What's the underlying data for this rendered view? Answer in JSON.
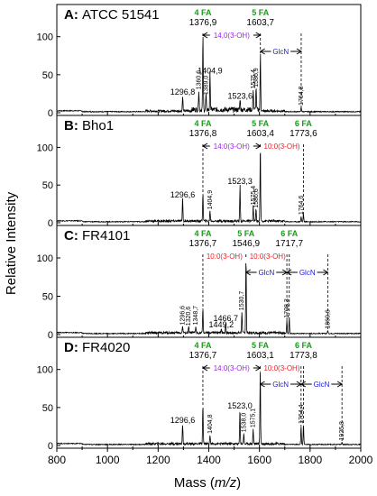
{
  "figure": {
    "ylabel": "Relative Intensity",
    "xlabel_prefix": "Mass (",
    "xlabel_var": "m/z",
    "xlabel_suffix": ")",
    "x_ticks": [
      "800",
      "1000",
      "1200",
      "1400",
      "1600",
      "1800",
      "2000"
    ],
    "y_ticks": [
      "0",
      "50",
      "100"
    ]
  },
  "chart_data": [
    {
      "type": "line",
      "panel": "A",
      "title_letter": "A:",
      "title": "ATCC 51541",
      "xlim": [
        800,
        2000
      ],
      "ylim": [
        0,
        140
      ],
      "peaks": [
        {
          "x": 1296.8,
          "y": 20,
          "label": "1296,8",
          "rot": false
        },
        {
          "x": 1360.6,
          "y": 27,
          "label": "1360,6",
          "rot": true
        },
        {
          "x": 1376.9,
          "y": 100,
          "label": "",
          "rot": false
        },
        {
          "x": 1389.0,
          "y": 20,
          "label": "1389,0",
          "rot": true
        },
        {
          "x": 1404.9,
          "y": 48,
          "label": "1404,9",
          "rot": false
        },
        {
          "x": 1523.6,
          "y": 15,
          "label": "1523,6",
          "rot": false
        },
        {
          "x": 1575.4,
          "y": 28,
          "label": "1575,4",
          "rot": true
        },
        {
          "x": 1586.9,
          "y": 30,
          "label": "1586,9",
          "rot": true
        },
        {
          "x": 1603.7,
          "y": 78,
          "label": "",
          "rot": false
        },
        {
          "x": 1764.8,
          "y": 6,
          "label": "1764,8",
          "rot": true
        }
      ],
      "ion_labels": [
        {
          "n": "4 FA",
          "m": "1376,9",
          "x": 1376.9
        },
        {
          "n": "5 FA",
          "m": "1603,7",
          "x": 1603.7
        }
      ],
      "brackets": [
        {
          "x1": 1376.9,
          "x2": 1603.7,
          "text": "14,0(3-OH)",
          "color": "#a020f0",
          "row": 0
        },
        {
          "x1": 1603.7,
          "x2": 1764.8,
          "text": "GlcN",
          "color": "#1a1adc",
          "row": 1
        }
      ]
    },
    {
      "type": "line",
      "panel": "B",
      "title_letter": "B:",
      "title": "Bho1",
      "xlim": [
        800,
        2000
      ],
      "ylim": [
        0,
        140
      ],
      "peaks": [
        {
          "x": 1296.6,
          "y": 30,
          "label": "1296,6",
          "rot": false
        },
        {
          "x": 1376.8,
          "y": 38,
          "label": "",
          "rot": false
        },
        {
          "x": 1404.9,
          "y": 14,
          "label": "1404,9",
          "rot": true
        },
        {
          "x": 1523.3,
          "y": 48,
          "label": "1523,3",
          "rot": false
        },
        {
          "x": 1575.4,
          "y": 20,
          "label": "1575,4",
          "rot": true
        },
        {
          "x": 1586.6,
          "y": 16,
          "label": "1586,6",
          "rot": true
        },
        {
          "x": 1603.4,
          "y": 100,
          "label": "",
          "rot": false
        },
        {
          "x": 1764.6,
          "y": 7,
          "label": "1764,6",
          "rot": true
        },
        {
          "x": 1773.6,
          "y": 11,
          "label": "",
          "rot": false
        }
      ],
      "ion_labels": [
        {
          "n": "4 FA",
          "m": "1376,8",
          "x": 1376.8
        },
        {
          "n": "5 FA",
          "m": "1603,4",
          "x": 1603.4
        },
        {
          "n": "6 FA",
          "m": "1773,6",
          "x": 1773.6
        }
      ],
      "brackets": [
        {
          "x1": 1376.8,
          "x2": 1603.4,
          "text": "14:0(3-OH)",
          "color": "#a020f0",
          "row": 0
        },
        {
          "x1": 1603.4,
          "x2": 1773.6,
          "text": "10:0(3-OH)",
          "color": "#e8202a",
          "row": 0
        }
      ]
    },
    {
      "type": "line",
      "panel": "C",
      "title_letter": "C:",
      "title": "FR4101",
      "xlim": [
        800,
        2000
      ],
      "ylim": [
        0,
        140
      ],
      "peaks": [
        {
          "x": 1296.6,
          "y": 9,
          "label": "1296,6",
          "rot": true
        },
        {
          "x": 1320.6,
          "y": 8,
          "label": "1320,6",
          "rot": true
        },
        {
          "x": 1348.7,
          "y": 9,
          "label": "1348,7",
          "rot": true
        },
        {
          "x": 1376.7,
          "y": 32,
          "label": "",
          "rot": false
        },
        {
          "x": 1449.2,
          "y": 6,
          "label": "1449,2",
          "rot": false
        },
        {
          "x": 1466.7,
          "y": 14,
          "label": "1466,7",
          "rot": false
        },
        {
          "x": 1530.7,
          "y": 28,
          "label": "1530,7",
          "rot": true
        },
        {
          "x": 1546.9,
          "y": 100,
          "label": "",
          "rot": false
        },
        {
          "x": 1708.3,
          "y": 18,
          "label": "1708,3",
          "rot": true
        },
        {
          "x": 1717.7,
          "y": 22,
          "label": "",
          "rot": false
        },
        {
          "x": 1869.6,
          "y": 4,
          "label": "1869,6",
          "rot": true
        }
      ],
      "ion_labels": [
        {
          "n": "4 FA",
          "m": "1376,7",
          "x": 1376.7
        },
        {
          "n": "5 FA",
          "m": "1546,9",
          "x": 1546.9
        },
        {
          "n": "6 FA",
          "m": "1717,7",
          "x": 1717.7
        }
      ],
      "brackets": [
        {
          "x1": 1376.7,
          "x2": 1546.9,
          "text": "10:0(3-OH)",
          "color": "#e8202a",
          "row": 0
        },
        {
          "x1": 1546.9,
          "x2": 1717.7,
          "text": "10:0(3-OH)",
          "color": "#e8202a",
          "row": 0
        },
        {
          "x1": 1546.9,
          "x2": 1708.3,
          "text": "GlcN",
          "color": "#1a1adc",
          "row": 1
        },
        {
          "x1": 1708.3,
          "x2": 1869.6,
          "text": "GlcN",
          "color": "#1a1adc",
          "row": 1
        }
      ]
    },
    {
      "type": "line",
      "panel": "D",
      "title_letter": "D:",
      "title": "FR4020",
      "xlim": [
        800,
        2000
      ],
      "ylim": [
        0,
        140
      ],
      "peaks": [
        {
          "x": 1296.6,
          "y": 26,
          "label": "1296,6",
          "rot": false
        },
        {
          "x": 1376.7,
          "y": 52,
          "label": "",
          "rot": false
        },
        {
          "x": 1404.8,
          "y": 12,
          "label": "1404,8",
          "rot": true
        },
        {
          "x": 1523.0,
          "y": 45,
          "label": "1523,0",
          "rot": false
        },
        {
          "x": 1538.0,
          "y": 14,
          "label": "1538,0",
          "rot": true
        },
        {
          "x": 1575.1,
          "y": 20,
          "label": "1575,1",
          "rot": true
        },
        {
          "x": 1603.1,
          "y": 100,
          "label": "",
          "rot": false
        },
        {
          "x": 1764.4,
          "y": 25,
          "label": "1764,4",
          "rot": true
        },
        {
          "x": 1773.8,
          "y": 27,
          "label": "",
          "rot": false
        },
        {
          "x": 1925.8,
          "y": 3,
          "label": "1925,8",
          "rot": true
        }
      ],
      "ion_labels": [
        {
          "n": "4 FA",
          "m": "1376,7",
          "x": 1376.7
        },
        {
          "n": "5 FA",
          "m": "1603,1",
          "x": 1603.1
        },
        {
          "n": "6 FA",
          "m": "1773,8",
          "x": 1773.8
        }
      ],
      "brackets": [
        {
          "x1": 1376.7,
          "x2": 1603.1,
          "text": "14:0(3-OH)",
          "color": "#a020f0",
          "row": 0
        },
        {
          "x1": 1603.1,
          "x2": 1773.8,
          "text": "10:0(3-OH)",
          "color": "#e8202a",
          "row": 0
        },
        {
          "x1": 1603.1,
          "x2": 1764.4,
          "text": "GlcN",
          "color": "#1a1adc",
          "row": 1
        },
        {
          "x1": 1764.4,
          "x2": 1925.8,
          "text": "GlcN",
          "color": "#1a1adc",
          "row": 1
        }
      ]
    }
  ],
  "colors": {
    "ion_label": "#1a9a1a",
    "axis": "#000000",
    "spectrum": "#000000"
  }
}
